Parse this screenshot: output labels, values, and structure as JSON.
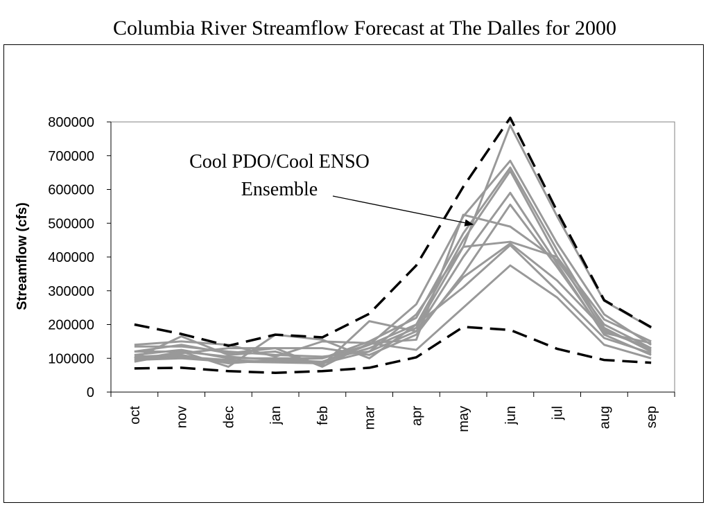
{
  "chart_data": {
    "type": "line",
    "title": "Columbia River Streamflow Forecast at The Dalles for 2000",
    "xlabel": "",
    "ylabel": "Streamflow (cfs)",
    "ylim": [
      0,
      800000
    ],
    "yticks": [
      0,
      100000,
      200000,
      300000,
      400000,
      500000,
      600000,
      700000,
      800000
    ],
    "categories": [
      "oct",
      "nov",
      "dec",
      "jan",
      "feb",
      "mar",
      "apr",
      "may",
      "jun",
      "jul",
      "aug",
      "sep"
    ],
    "grid": false,
    "annotation": {
      "lines": [
        "Cool PDO/Cool ENSO",
        "Ensemble"
      ]
    },
    "envelope": [
      {
        "style": "upper-dashed",
        "color": "#000000",
        "values": [
          200000,
          172000,
          137000,
          170000,
          162000,
          232000,
          375000,
          608000,
          812000,
          535000,
          272000,
          192000
        ]
      },
      {
        "style": "lower-dashed",
        "color": "#000000",
        "values": [
          70000,
          72000,
          62000,
          57000,
          62000,
          72000,
          103000,
          193000,
          184000,
          128000,
          95000,
          87000
        ]
      }
    ],
    "ensemble_color": "#999999",
    "ensemble": [
      {
        "values": [
          135000,
          135000,
          120000,
          110000,
          105000,
          120000,
          230000,
          430000,
          790000,
          520000,
          270000,
          190000
        ]
      },
      {
        "values": [
          120000,
          120000,
          105000,
          95000,
          100000,
          140000,
          260000,
          520000,
          685000,
          440000,
          230000,
          140000
        ]
      },
      {
        "values": [
          110000,
          125000,
          100000,
          100000,
          100000,
          150000,
          220000,
          470000,
          665000,
          420000,
          190000,
          120000
        ]
      },
      {
        "values": [
          100000,
          105000,
          95000,
          90000,
          90000,
          140000,
          200000,
          450000,
          655000,
          400000,
          180000,
          130000
        ]
      },
      {
        "values": [
          95000,
          100000,
          90000,
          88000,
          85000,
          120000,
          180000,
          400000,
          590000,
          380000,
          170000,
          110000
        ]
      },
      {
        "values": [
          90000,
          115000,
          130000,
          130000,
          130000,
          110000,
          170000,
          350000,
          555000,
          370000,
          175000,
          145000
        ]
      },
      {
        "values": [
          140000,
          150000,
          140000,
          105000,
          150000,
          145000,
          155000,
          525000,
          490000,
          390000,
          200000,
          130000
        ]
      },
      {
        "values": [
          105000,
          110000,
          85000,
          95000,
          90000,
          130000,
          190000,
          430000,
          445000,
          400000,
          215000,
          150000
        ]
      },
      {
        "values": [
          100000,
          165000,
          110000,
          120000,
          80000,
          210000,
          180000,
          340000,
          440000,
          330000,
          185000,
          125000
        ]
      },
      {
        "values": [
          95000,
          120000,
          75000,
          170000,
          155000,
          100000,
          200000,
          310000,
          435000,
          300000,
          160000,
          115000
        ]
      },
      {
        "values": [
          120000,
          140000,
          115000,
          130000,
          75000,
          145000,
          125000,
          250000,
          375000,
          280000,
          140000,
          100000
        ]
      }
    ]
  }
}
